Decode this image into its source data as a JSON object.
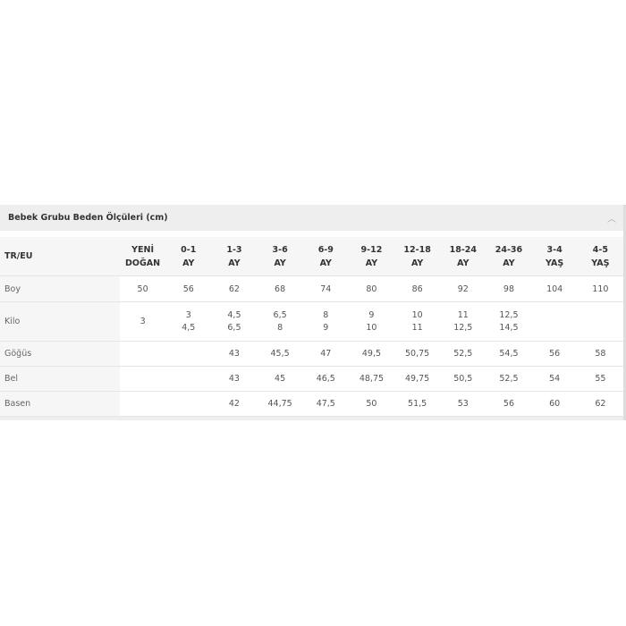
{
  "title": "Bebek Grubu Beden Ölçüleri (cm)",
  "collapse_icon": "chevron-up-icon",
  "table": {
    "corner": "TR/EU",
    "columns": [
      [
        "YENİ",
        "DOĞAN"
      ],
      [
        "0-1",
        "AY"
      ],
      [
        "1-3",
        "AY"
      ],
      [
        "3-6",
        "AY"
      ],
      [
        "6-9",
        "AY"
      ],
      [
        "9-12",
        "AY"
      ],
      [
        "12-18",
        "AY"
      ],
      [
        "18-24",
        "AY"
      ],
      [
        "24-36",
        "AY"
      ],
      [
        "3-4",
        "YAŞ"
      ],
      [
        "4-5",
        "YAŞ"
      ]
    ],
    "rows": [
      {
        "label": "Boy",
        "cells": [
          [
            "50"
          ],
          [
            "56"
          ],
          [
            "62"
          ],
          [
            "68"
          ],
          [
            "74"
          ],
          [
            "80"
          ],
          [
            "86"
          ],
          [
            "92"
          ],
          [
            "98"
          ],
          [
            "104"
          ],
          [
            "110"
          ]
        ]
      },
      {
        "label": "Kilo",
        "cells": [
          [
            "3"
          ],
          [
            "3",
            "4,5"
          ],
          [
            "4,5",
            "6,5"
          ],
          [
            "6,5",
            "8"
          ],
          [
            "8",
            "9"
          ],
          [
            "9",
            "10"
          ],
          [
            "10",
            "11"
          ],
          [
            "11",
            "12,5"
          ],
          [
            "12,5",
            "14,5"
          ],
          [],
          []
        ]
      },
      {
        "label": "Göğüs",
        "cells": [
          [],
          [],
          [
            "43"
          ],
          [
            "45,5"
          ],
          [
            "47"
          ],
          [
            "49,5"
          ],
          [
            "50,75"
          ],
          [
            "52,5"
          ],
          [
            "54,5"
          ],
          [
            "56"
          ],
          [
            "58"
          ]
        ]
      },
      {
        "label": "Bel",
        "cells": [
          [],
          [],
          [
            "43"
          ],
          [
            "45"
          ],
          [
            "46,5"
          ],
          [
            "48,75"
          ],
          [
            "49,75"
          ],
          [
            "50,5"
          ],
          [
            "52,5"
          ],
          [
            "54"
          ],
          [
            "55"
          ]
        ]
      },
      {
        "label": "Basen",
        "cells": [
          [],
          [],
          [
            "42"
          ],
          [
            "44,75"
          ],
          [
            "47,5"
          ],
          [
            "50"
          ],
          [
            "51,5"
          ],
          [
            "53"
          ],
          [
            "56"
          ],
          [
            "60"
          ],
          [
            "62"
          ]
        ]
      }
    ]
  }
}
